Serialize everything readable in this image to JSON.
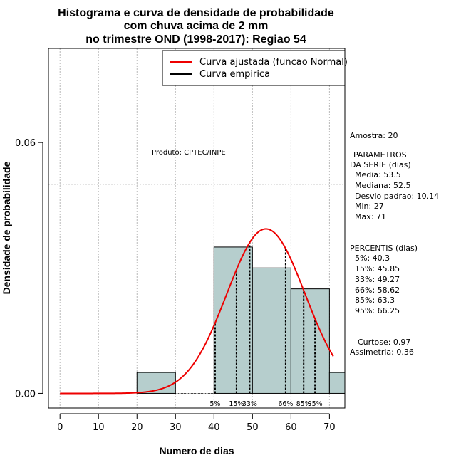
{
  "chart_data": {
    "type": "bar",
    "title_lines": [
      "Histograma e curva de densidade de probabilidade",
      "com chuva acima de 2 mm",
      "no trimestre OND (1998-2017): Regiao 54"
    ],
    "xlabel": "Numero de dias",
    "ylabel": "Densidade de probabilidade",
    "xlim": [
      -3,
      74
    ],
    "ylim": [
      -0.0035,
      0.0825
    ],
    "x_ticks": [
      0,
      10,
      20,
      30,
      40,
      50,
      60,
      70
    ],
    "y_ticks": [
      0.0,
      0.06
    ],
    "y_tick_labels": [
      "0.00",
      "0.06"
    ],
    "x_grid": [
      0,
      10,
      20,
      30,
      40,
      50,
      60,
      70
    ],
    "y_grid": [
      0.05
    ],
    "grid": true,
    "bar_color": "#b6cecd",
    "bin_width": 10,
    "bins": [
      {
        "start": 20,
        "end": 30,
        "density": 0.005
      },
      {
        "start": 30,
        "end": 40,
        "density": 0.0
      },
      {
        "start": 40,
        "end": 50,
        "density": 0.035
      },
      {
        "start": 50,
        "end": 60,
        "density": 0.03
      },
      {
        "start": 60,
        "end": 70,
        "density": 0.025
      },
      {
        "start": 70,
        "end": 80,
        "density": 0.005
      }
    ],
    "normal_curve": {
      "name": "Curva ajustada (funcao Normal)",
      "color": "#ee0000",
      "mean": 53.5,
      "sd": 10.14,
      "x_range": [
        0,
        71
      ]
    },
    "empirical_curve_name": "Curva empirica",
    "empirical_curve_color": "#000000",
    "legend_position": "top-right",
    "percentile_lines": [
      {
        "label": "5%",
        "x": 40.3
      },
      {
        "label": "15%",
        "x": 45.85
      },
      {
        "label": "33%",
        "x": 49.27
      },
      {
        "label": "66%",
        "x": 58.62
      },
      {
        "label": "85%",
        "x": 63.3
      },
      {
        "label": "95%",
        "x": 66.25
      }
    ],
    "product_label": "Produto: CPTEC/INPE"
  },
  "side_panel": {
    "amostra": "Amostra: 20",
    "parametros_title_1": "PARAMETROS",
    "parametros_title_2": "DA SERIE (dias)",
    "media": "Media: 53.5",
    "mediana": "Mediana: 52.5",
    "desvio": "Desvio padrao: 10.14",
    "min": "Min: 27",
    "max": "Max: 71",
    "percentis_title": "PERCENTIS (dias)",
    "p5": "5%: 40.3",
    "p15": "15%: 45.85",
    "p33": "33%: 49.27",
    "p66": "66%: 58.62",
    "p85": "85%: 63.3",
    "p95": "95%: 66.25",
    "curtose": "Curtose: 0.97",
    "assimetria": "Assimetria: 0.36"
  }
}
